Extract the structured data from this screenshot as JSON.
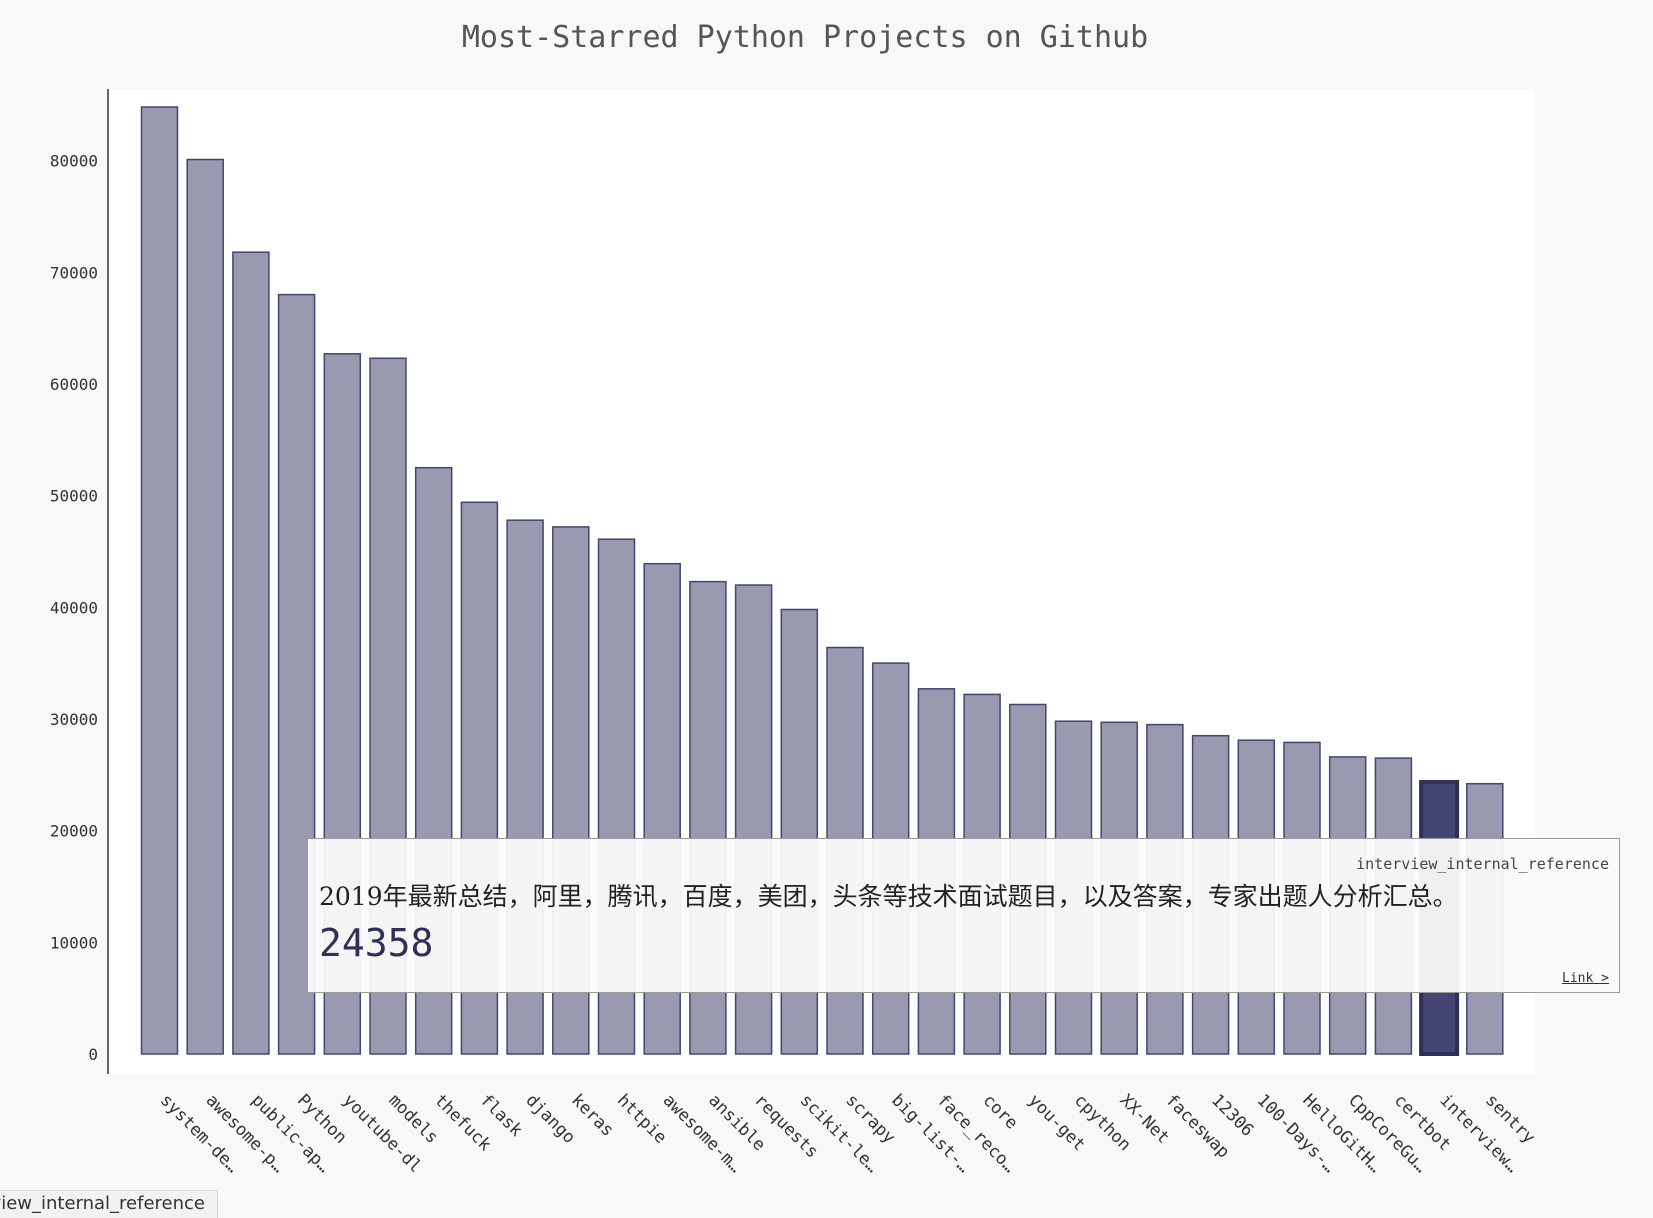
{
  "chart_data": {
    "type": "bar",
    "title": "Most-Starred Python Projects on Github",
    "xlabel": "",
    "ylabel": "",
    "ylim": [
      0,
      90000
    ],
    "yticks": [
      0,
      10000,
      20000,
      30000,
      40000,
      50000,
      60000,
      70000,
      80000
    ],
    "categories": [
      "system-de…",
      "awesome-p…",
      "public-ap…",
      "Python",
      "youtube-dl",
      "models",
      "thefuck",
      "flask",
      "django",
      "keras",
      "httpie",
      "awesome-m…",
      "ansible",
      "requests",
      "scikit-le…",
      "scrapy",
      "big-list-…",
      "face_reco…",
      "core",
      "you-get",
      "cpython",
      "XX-Net",
      "faceswap",
      "12306",
      "100-Days-…",
      "HelloGitH…",
      "CppCoreGu…",
      "certbot",
      "interview…",
      "sentry"
    ],
    "values": [
      84800,
      80100,
      71800,
      68000,
      62700,
      62300,
      52500,
      49400,
      47800,
      47200,
      46100,
      43900,
      42300,
      42000,
      39800,
      36400,
      35000,
      32700,
      32200,
      31300,
      29800,
      29700,
      29500,
      28500,
      28100,
      27900,
      26600,
      26500,
      24358,
      24200
    ],
    "highlight_index": 28,
    "bar_color": "#9999b0",
    "bar_border_color": "#454573",
    "highlight_color": "#454573"
  },
  "tooltip": {
    "name": "interview_internal_reference",
    "description": "2019年最新总结，阿里，腾讯，百度，美团，头条等技术面试题目，以及答案，专家出题人分析汇总。",
    "value": "24358",
    "link": "Link >"
  },
  "status_bar": {
    "text": "interview_internal_reference"
  }
}
